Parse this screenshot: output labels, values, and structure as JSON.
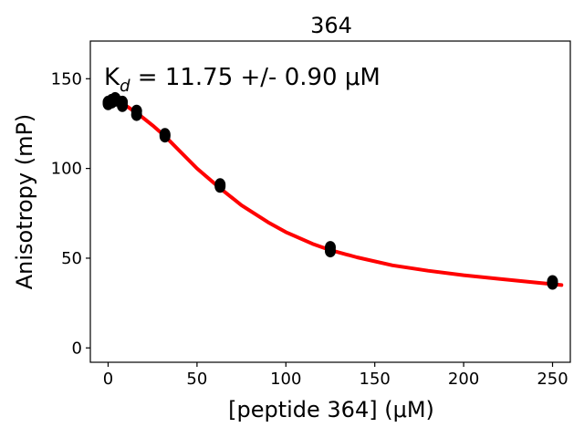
{
  "chart_data": {
    "type": "scatter",
    "title": "364",
    "xlabel": "[peptide 364] (μM)",
    "ylabel": "Anisotropy (mP)",
    "annotation": {
      "prefix": "K",
      "subscript": "d",
      "text": " = 11.75 +/- 0.90 μM"
    },
    "xlim": [
      -10,
      260
    ],
    "ylim": [
      -8,
      171
    ],
    "xticks": [
      0,
      50,
      100,
      150,
      200,
      250
    ],
    "yticks": [
      0,
      50,
      100,
      150
    ],
    "grid": false,
    "series": [
      {
        "kind": "points",
        "color": "#000000",
        "x": [
          0,
          0,
          2,
          2,
          4,
          4,
          8,
          8,
          16,
          16,
          32,
          32,
          63,
          63,
          125,
          125,
          250,
          250
        ],
        "y": [
          137,
          136,
          138,
          137,
          139,
          138,
          137,
          135,
          132,
          130,
          119,
          118,
          91,
          90,
          56,
          54,
          37,
          36
        ]
      },
      {
        "kind": "fit-line",
        "color": "#ff0000",
        "x": [
          0,
          5,
          10,
          16,
          20,
          25,
          32,
          40,
          50,
          63,
          75,
          90,
          100,
          115,
          125,
          140,
          160,
          180,
          200,
          220,
          240,
          255
        ],
        "y": [
          138,
          137,
          135,
          131,
          128,
          124,
          118,
          110,
          100,
          89,
          79.5,
          70,
          64.5,
          58,
          54.5,
          50.5,
          46,
          43,
          40.5,
          38.5,
          36.5,
          35
        ]
      }
    ]
  }
}
